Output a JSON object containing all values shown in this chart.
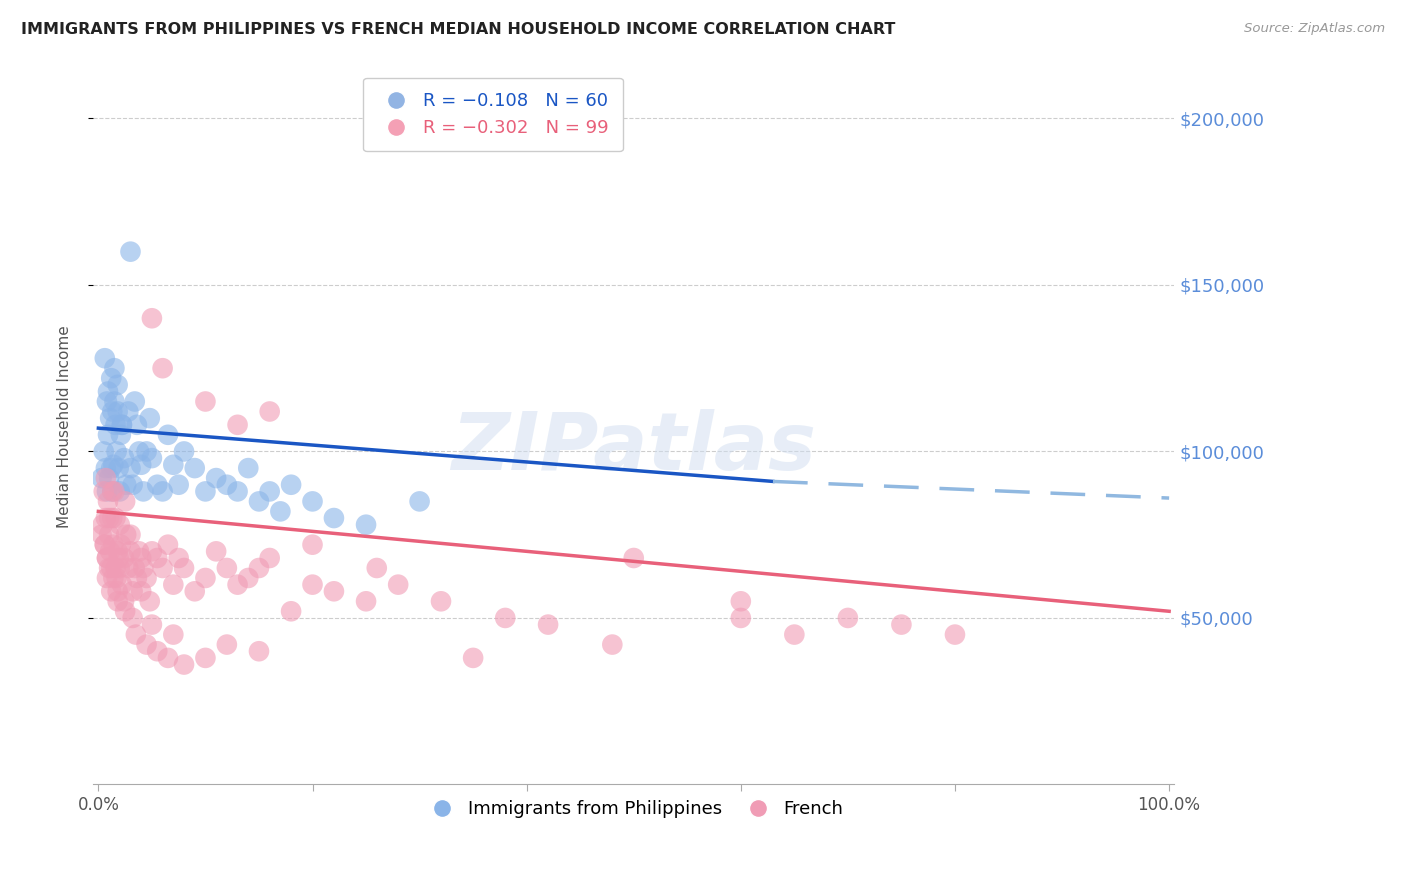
{
  "title": "IMMIGRANTS FROM PHILIPPINES VS FRENCH MEDIAN HOUSEHOLD INCOME CORRELATION CHART",
  "source": "Source: ZipAtlas.com",
  "ylabel": "Median Household Income",
  "ylim": [
    0,
    215000
  ],
  "xlim": [
    -0.005,
    1.005
  ],
  "blue_color": "#8ab4e8",
  "pink_color": "#f09cb5",
  "trend_blue_solid_color": "#1a56c4",
  "trend_blue_dashed_color": "#90b8e0",
  "trend_pink_color": "#e8607a",
  "watermark": "ZIPatlas",
  "ytick_color": "#5b8dd9",
  "grid_color": "#c8c8c8",
  "title_color": "#222222",
  "legend1_label": "R = −0.108   N = 60",
  "legend2_label": "R = −0.302   N = 99",
  "legend1_color": "#92b4e3",
  "legend2_color": "#f4a0b5",
  "legend1_text_color": "#1a56c4",
  "legend2_text_color": "#e8607a",
  "bottom_legend1": "Immigrants from Philippines",
  "bottom_legend2": "French",
  "blue_scatter_x": [
    0.003,
    0.005,
    0.007,
    0.008,
    0.009,
    0.01,
    0.011,
    0.012,
    0.013,
    0.014,
    0.015,
    0.016,
    0.017,
    0.018,
    0.019,
    0.02,
    0.021,
    0.022,
    0.024,
    0.026,
    0.028,
    0.03,
    0.032,
    0.034,
    0.036,
    0.038,
    0.04,
    0.042,
    0.045,
    0.048,
    0.05,
    0.055,
    0.06,
    0.065,
    0.07,
    0.075,
    0.08,
    0.09,
    0.1,
    0.11,
    0.12,
    0.13,
    0.14,
    0.15,
    0.16,
    0.17,
    0.18,
    0.2,
    0.22,
    0.25,
    0.006,
    0.009,
    0.012,
    0.015,
    0.018,
    0.022,
    0.3,
    0.03,
    0.008,
    0.013
  ],
  "blue_scatter_y": [
    92000,
    100000,
    95000,
    88000,
    105000,
    92000,
    110000,
    95000,
    88000,
    96000,
    115000,
    108000,
    100000,
    112000,
    95000,
    88000,
    105000,
    108000,
    98000,
    90000,
    112000,
    95000,
    90000,
    115000,
    108000,
    100000,
    96000,
    88000,
    100000,
    110000,
    98000,
    90000,
    88000,
    105000,
    96000,
    90000,
    100000,
    95000,
    88000,
    92000,
    90000,
    88000,
    95000,
    85000,
    88000,
    82000,
    90000,
    85000,
    80000,
    78000,
    128000,
    118000,
    122000,
    125000,
    120000,
    108000,
    85000,
    160000,
    115000,
    112000
  ],
  "pink_scatter_x": [
    0.003,
    0.005,
    0.006,
    0.007,
    0.008,
    0.009,
    0.01,
    0.011,
    0.012,
    0.013,
    0.014,
    0.015,
    0.016,
    0.017,
    0.018,
    0.019,
    0.02,
    0.021,
    0.022,
    0.024,
    0.026,
    0.028,
    0.03,
    0.032,
    0.034,
    0.036,
    0.038,
    0.04,
    0.042,
    0.045,
    0.048,
    0.05,
    0.055,
    0.06,
    0.065,
    0.07,
    0.075,
    0.08,
    0.09,
    0.1,
    0.11,
    0.12,
    0.13,
    0.14,
    0.15,
    0.16,
    0.18,
    0.2,
    0.22,
    0.25,
    0.007,
    0.01,
    0.013,
    0.016,
    0.02,
    0.025,
    0.03,
    0.04,
    0.05,
    0.06,
    0.28,
    0.32,
    0.38,
    0.42,
    0.5,
    0.6,
    0.65,
    0.7,
    0.75,
    0.8,
    0.008,
    0.012,
    0.018,
    0.025,
    0.035,
    0.045,
    0.055,
    0.065,
    0.08,
    0.1,
    0.12,
    0.15,
    0.004,
    0.006,
    0.008,
    0.01,
    0.014,
    0.018,
    0.024,
    0.032,
    0.05,
    0.07,
    0.1,
    0.13,
    0.16,
    0.2,
    0.26,
    0.35,
    0.48,
    0.6
  ],
  "pink_scatter_y": [
    75000,
    88000,
    72000,
    80000,
    68000,
    85000,
    75000,
    70000,
    65000,
    80000,
    72000,
    88000,
    65000,
    62000,
    70000,
    68000,
    65000,
    72000,
    60000,
    68000,
    75000,
    65000,
    70000,
    58000,
    65000,
    62000,
    70000,
    58000,
    65000,
    62000,
    55000,
    70000,
    68000,
    65000,
    72000,
    60000,
    68000,
    65000,
    58000,
    62000,
    70000,
    65000,
    60000,
    62000,
    65000,
    68000,
    52000,
    60000,
    58000,
    55000,
    92000,
    80000,
    88000,
    80000,
    78000,
    85000,
    75000,
    68000,
    140000,
    125000,
    60000,
    55000,
    50000,
    48000,
    68000,
    55000,
    45000,
    50000,
    48000,
    45000,
    62000,
    58000,
    55000,
    52000,
    45000,
    42000,
    40000,
    38000,
    36000,
    38000,
    42000,
    40000,
    78000,
    72000,
    68000,
    65000,
    62000,
    58000,
    55000,
    50000,
    48000,
    45000,
    115000,
    108000,
    112000,
    72000,
    65000,
    38000,
    42000,
    50000
  ]
}
